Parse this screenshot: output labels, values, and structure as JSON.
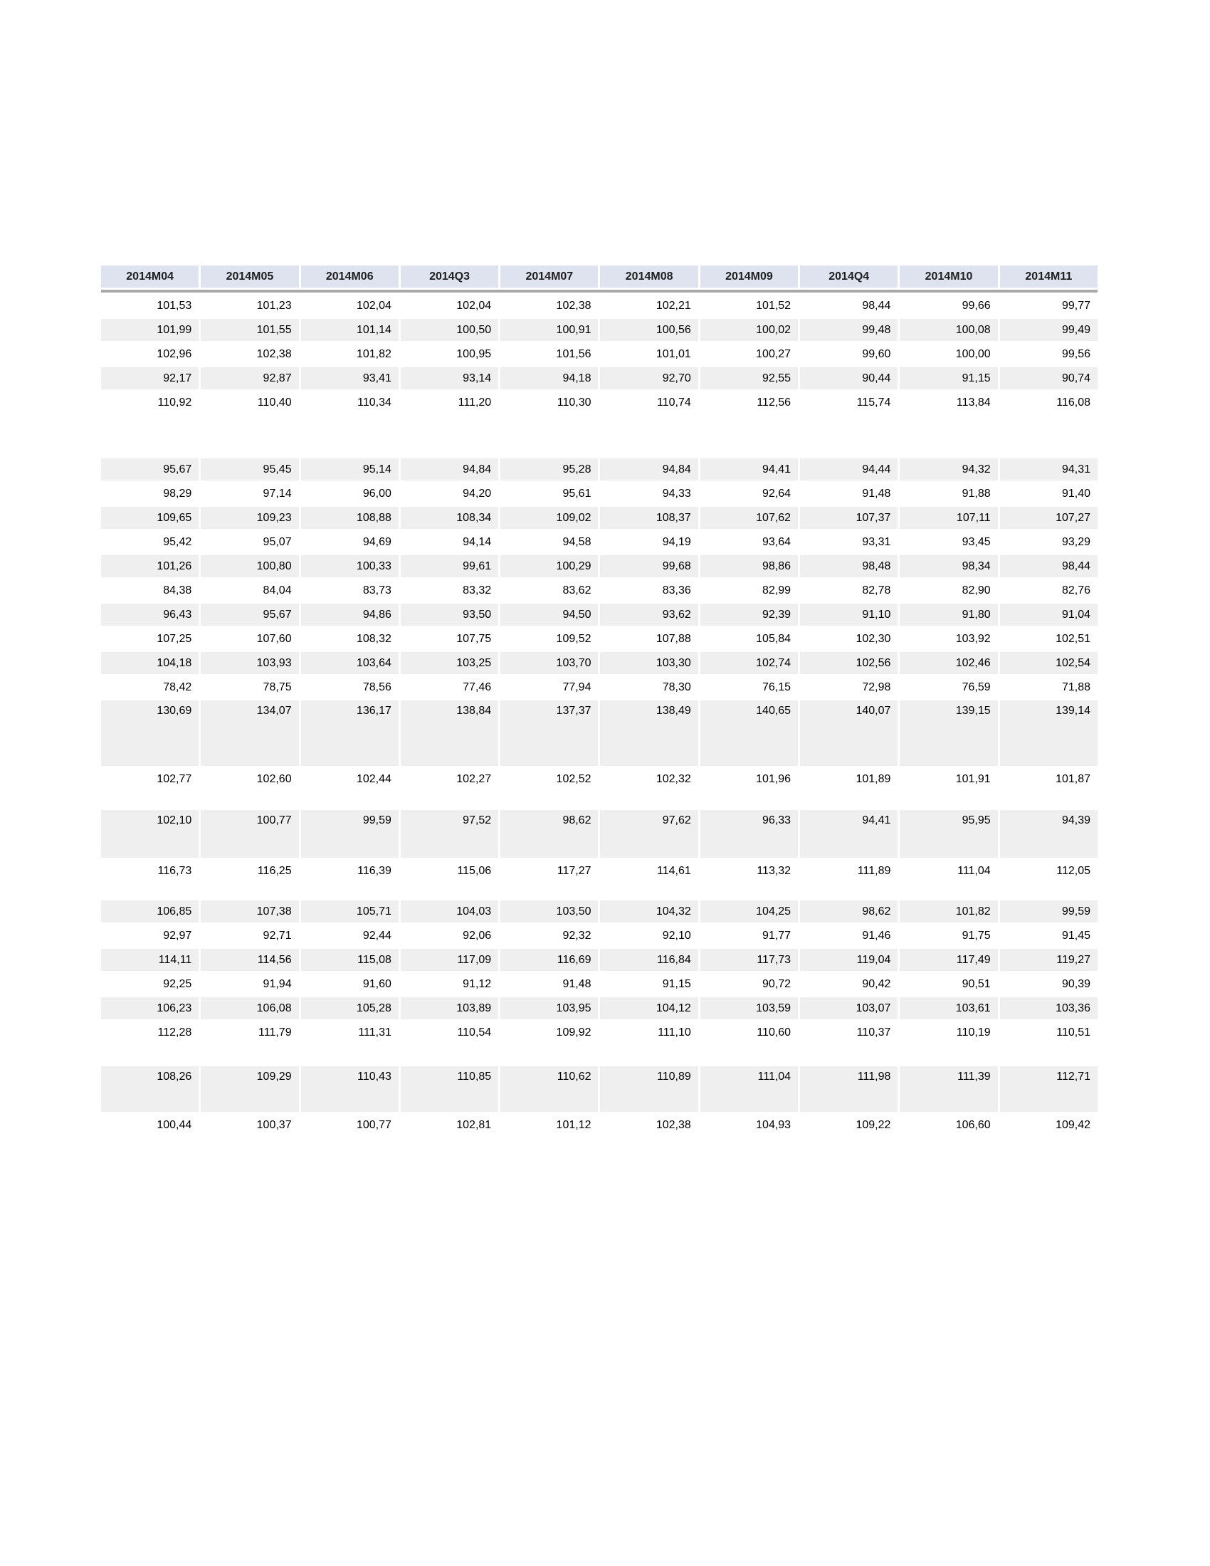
{
  "colors": {
    "header_bg": "#dfe3f0",
    "stripe_bg": "#efefef",
    "rule": "#a9a9a9",
    "page_bg": "#ffffff",
    "text": "#000000"
  },
  "table": {
    "columns": [
      "2014M04",
      "2014M05",
      "2014M06",
      "2014Q3",
      "2014M07",
      "2014M08",
      "2014M09",
      "2014Q4",
      "2014M10",
      "2014M11"
    ],
    "rows": [
      {
        "type": "data",
        "shaded": false,
        "values": [
          "101,53",
          "101,23",
          "102,04",
          "102,04",
          "102,38",
          "102,21",
          "101,52",
          "98,44",
          "99,66",
          "99,77"
        ]
      },
      {
        "type": "data",
        "shaded": true,
        "values": [
          "101,99",
          "101,55",
          "101,14",
          "100,50",
          "100,91",
          "100,56",
          "100,02",
          "99,48",
          "100,08",
          "99,49"
        ]
      },
      {
        "type": "data",
        "shaded": false,
        "values": [
          "102,96",
          "102,38",
          "101,82",
          "100,95",
          "101,56",
          "101,01",
          "100,27",
          "99,60",
          "100,00",
          "99,56"
        ]
      },
      {
        "type": "data",
        "shaded": true,
        "values": [
          "92,17",
          "92,87",
          "93,41",
          "93,14",
          "94,18",
          "92,70",
          "92,55",
          "90,44",
          "91,15",
          "90,74"
        ]
      },
      {
        "type": "data",
        "shaded": false,
        "values": [
          "110,92",
          "110,40",
          "110,34",
          "111,20",
          "110,30",
          "110,74",
          "112,56",
          "115,74",
          "113,84",
          "116,08"
        ]
      },
      {
        "type": "spacer",
        "height": 57
      },
      {
        "type": "data",
        "shaded": true,
        "values": [
          "95,67",
          "95,45",
          "95,14",
          "94,84",
          "95,28",
          "94,84",
          "94,41",
          "94,44",
          "94,32",
          "94,31"
        ]
      },
      {
        "type": "data",
        "shaded": false,
        "values": [
          "98,29",
          "97,14",
          "96,00",
          "94,20",
          "95,61",
          "94,33",
          "92,64",
          "91,48",
          "91,88",
          "91,40"
        ]
      },
      {
        "type": "data",
        "shaded": true,
        "values": [
          "109,65",
          "109,23",
          "108,88",
          "108,34",
          "109,02",
          "108,37",
          "107,62",
          "107,37",
          "107,11",
          "107,27"
        ]
      },
      {
        "type": "data",
        "shaded": false,
        "values": [
          "95,42",
          "95,07",
          "94,69",
          "94,14",
          "94,58",
          "94,19",
          "93,64",
          "93,31",
          "93,45",
          "93,29"
        ]
      },
      {
        "type": "data",
        "shaded": true,
        "values": [
          "101,26",
          "100,80",
          "100,33",
          "99,61",
          "100,29",
          "99,68",
          "98,86",
          "98,48",
          "98,34",
          "98,44"
        ]
      },
      {
        "type": "data",
        "shaded": false,
        "values": [
          "84,38",
          "84,04",
          "83,73",
          "83,32",
          "83,62",
          "83,36",
          "82,99",
          "82,78",
          "82,90",
          "82,76"
        ]
      },
      {
        "type": "data",
        "shaded": true,
        "values": [
          "96,43",
          "95,67",
          "94,86",
          "93,50",
          "94,50",
          "93,62",
          "92,39",
          "91,10",
          "91,80",
          "91,04"
        ]
      },
      {
        "type": "data",
        "shaded": false,
        "values": [
          "107,25",
          "107,60",
          "108,32",
          "107,75",
          "109,52",
          "107,88",
          "105,84",
          "102,30",
          "103,92",
          "102,51"
        ]
      },
      {
        "type": "data",
        "shaded": true,
        "values": [
          "104,18",
          "103,93",
          "103,64",
          "103,25",
          "103,70",
          "103,30",
          "102,74",
          "102,56",
          "102,46",
          "102,54"
        ]
      },
      {
        "type": "data",
        "shaded": false,
        "values": [
          "78,42",
          "78,75",
          "78,56",
          "77,46",
          "77,94",
          "78,30",
          "76,15",
          "72,98",
          "76,59",
          "71,88"
        ]
      },
      {
        "type": "data",
        "shaded": true,
        "tall": 86,
        "values": [
          "130,69",
          "134,07",
          "136,17",
          "138,84",
          "137,37",
          "138,49",
          "140,65",
          "140,07",
          "139,15",
          "139,14"
        ]
      },
      {
        "type": "data",
        "shaded": false,
        "values": [
          "102,77",
          "102,60",
          "102,44",
          "102,27",
          "102,52",
          "102,32",
          "101,96",
          "101,89",
          "101,91",
          "101,87"
        ]
      },
      {
        "type": "spacer",
        "height": 22
      },
      {
        "type": "data",
        "shaded": true,
        "tall": 61,
        "values": [
          "102,10",
          "100,77",
          "99,59",
          "97,52",
          "98,62",
          "97,62",
          "96,33",
          "94,41",
          "95,95",
          "94,39"
        ]
      },
      {
        "type": "data",
        "shaded": false,
        "values": [
          "116,73",
          "116,25",
          "116,39",
          "115,06",
          "117,27",
          "114,61",
          "113,32",
          "111,89",
          "111,04",
          "112,05"
        ]
      },
      {
        "type": "spacer",
        "height": 20
      },
      {
        "type": "data",
        "shaded": true,
        "values": [
          "106,85",
          "107,38",
          "105,71",
          "104,03",
          "103,50",
          "104,32",
          "104,25",
          "98,62",
          "101,82",
          "99,59"
        ]
      },
      {
        "type": "data",
        "shaded": false,
        "values": [
          "92,97",
          "92,71",
          "92,44",
          "92,06",
          "92,32",
          "92,10",
          "91,77",
          "91,46",
          "91,75",
          "91,45"
        ]
      },
      {
        "type": "data",
        "shaded": true,
        "values": [
          "114,11",
          "114,56",
          "115,08",
          "117,09",
          "116,69",
          "116,84",
          "117,73",
          "119,04",
          "117,49",
          "119,27"
        ]
      },
      {
        "type": "data",
        "shaded": false,
        "values": [
          "92,25",
          "91,94",
          "91,60",
          "91,12",
          "91,48",
          "91,15",
          "90,72",
          "90,42",
          "90,51",
          "90,39"
        ]
      },
      {
        "type": "data",
        "shaded": true,
        "values": [
          "106,23",
          "106,08",
          "105,28",
          "103,89",
          "103,95",
          "104,12",
          "103,59",
          "103,07",
          "103,61",
          "103,36"
        ]
      },
      {
        "type": "data",
        "shaded": false,
        "values": [
          "112,28",
          "111,79",
          "111,31",
          "110,54",
          "109,92",
          "111,10",
          "110,60",
          "110,37",
          "110,19",
          "110,51"
        ]
      },
      {
        "type": "spacer",
        "height": 26
      },
      {
        "type": "data",
        "shaded": true,
        "tall": 58,
        "values": [
          "108,26",
          "109,29",
          "110,43",
          "110,85",
          "110,62",
          "110,89",
          "111,04",
          "111,98",
          "111,39",
          "112,71"
        ]
      },
      {
        "type": "data",
        "shaded": false,
        "values": [
          "100,44",
          "100,37",
          "100,77",
          "102,81",
          "101,12",
          "102,38",
          "104,93",
          "109,22",
          "106,60",
          "109,42"
        ]
      }
    ]
  }
}
